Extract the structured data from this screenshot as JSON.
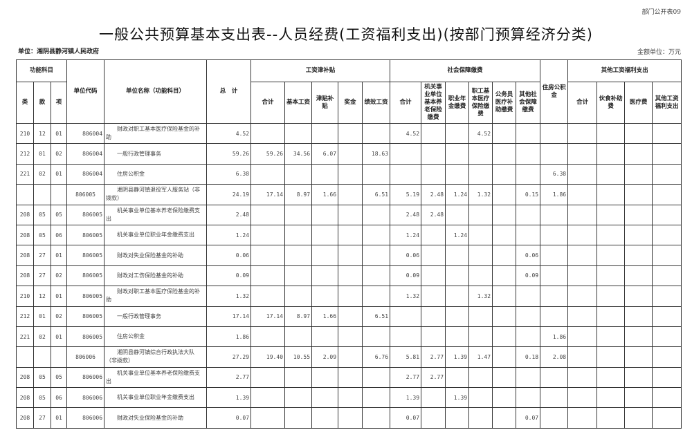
{
  "form_no": "部门公开表09",
  "title": "一般公共预算基本支出表--人员经费(工资福利支出)(按部门预算经济分类)",
  "unit_label": "单位：湘阴县静河镇人民政府",
  "money_unit": "金额单位：万元",
  "headers": {
    "func": "功能科目",
    "lei": "类",
    "kuan": "款",
    "xiang": "项",
    "code": "单位代码",
    "name": "单位名称（功能科目）",
    "total": "总　计",
    "wage_group": "工资津补贴",
    "wage": [
      "合计",
      "基本工资",
      "津贴补贴",
      "奖金",
      "绩效工资"
    ],
    "social_group": "社会保障缴费",
    "social": [
      "合计",
      "机关事业单位基本养老保险缴费",
      "职业年金缴费",
      "职工基本医疗保险缴费",
      "公务员医疗补助缴费",
      "其他社会保障缴费"
    ],
    "housing": "住房公积金",
    "other_group": "其他工资福利支出",
    "other": [
      "合计",
      "伙食补助费",
      "医疗费",
      "其他工资福利支出"
    ]
  },
  "rows": [
    [
      "210",
      "12",
      "01",
      "806004",
      "财政对职工基本医疗保险基金的补助",
      "4.52",
      "",
      "",
      "",
      "",
      "",
      "4.52",
      "",
      "",
      "4.52",
      "",
      "",
      "",
      "",
      "",
      "",
      ""
    ],
    [
      "212",
      "01",
      "02",
      "806004",
      "一般行政管理事务",
      "59.26",
      "59.26",
      "34.56",
      "6.07",
      "",
      "18.63",
      "",
      "",
      "",
      "",
      "",
      "",
      "",
      "",
      "",
      "",
      ""
    ],
    [
      "221",
      "02",
      "01",
      "806004",
      "住房公积金",
      "6.38",
      "",
      "",
      "",
      "",
      "",
      "",
      "",
      "",
      "",
      "",
      "",
      "6.38",
      "",
      "",
      "",
      ""
    ],
    [
      "",
      "",
      "",
      "806005",
      "湘阴县静河镇退役军人服务站（非拨款）",
      "24.19",
      "17.14",
      "8.97",
      "1.66",
      "",
      "6.51",
      "5.19",
      "2.48",
      "1.24",
      "1.32",
      "",
      "0.15",
      "1.86",
      "",
      "",
      "",
      ""
    ],
    [
      "208",
      "05",
      "05",
      "806005",
      "机关事业单位基本养老保险缴费支出",
      "2.48",
      "",
      "",
      "",
      "",
      "",
      "2.48",
      "2.48",
      "",
      "",
      "",
      "",
      "",
      "",
      "",
      "",
      ""
    ],
    [
      "208",
      "05",
      "06",
      "806005",
      "机关事业单位职业年金缴费支出",
      "1.24",
      "",
      "",
      "",
      "",
      "",
      "1.24",
      "",
      "1.24",
      "",
      "",
      "",
      "",
      "",
      "",
      "",
      ""
    ],
    [
      "208",
      "27",
      "01",
      "806005",
      "财政对失业保险基金的补助",
      "0.06",
      "",
      "",
      "",
      "",
      "",
      "0.06",
      "",
      "",
      "",
      "",
      "0.06",
      "",
      "",
      "",
      "",
      ""
    ],
    [
      "208",
      "27",
      "02",
      "806005",
      "财政对工伤保险基金的补助",
      "0.09",
      "",
      "",
      "",
      "",
      "",
      "0.09",
      "",
      "",
      "",
      "",
      "0.09",
      "",
      "",
      "",
      "",
      ""
    ],
    [
      "210",
      "12",
      "01",
      "806005",
      "财政对职工基本医疗保险基金的补助",
      "1.32",
      "",
      "",
      "",
      "",
      "",
      "1.32",
      "",
      "",
      "1.32",
      "",
      "",
      "",
      "",
      "",
      "",
      ""
    ],
    [
      "212",
      "01",
      "02",
      "806005",
      "一般行政管理事务",
      "17.14",
      "17.14",
      "8.97",
      "1.66",
      "",
      "6.51",
      "",
      "",
      "",
      "",
      "",
      "",
      "",
      "",
      "",
      "",
      ""
    ],
    [
      "221",
      "02",
      "01",
      "806005",
      "住房公积金",
      "1.86",
      "",
      "",
      "",
      "",
      "",
      "",
      "",
      "",
      "",
      "",
      "",
      "1.86",
      "",
      "",
      "",
      ""
    ],
    [
      "",
      "",
      "",
      "806006",
      "湘阴县静河镇综合行政执法大队（非拨款）",
      "27.29",
      "19.40",
      "10.55",
      "2.09",
      "",
      "6.76",
      "5.81",
      "2.77",
      "1.39",
      "1.47",
      "",
      "0.18",
      "2.08",
      "",
      "",
      "",
      ""
    ],
    [
      "208",
      "05",
      "05",
      "806006",
      "机关事业单位基本养老保险缴费支出",
      "2.77",
      "",
      "",
      "",
      "",
      "",
      "2.77",
      "2.77",
      "",
      "",
      "",
      "",
      "",
      "",
      "",
      "",
      ""
    ],
    [
      "208",
      "05",
      "06",
      "806006",
      "机关事业单位职业年金缴费支出",
      "1.39",
      "",
      "",
      "",
      "",
      "",
      "1.39",
      "",
      "1.39",
      "",
      "",
      "",
      "",
      "",
      "",
      "",
      ""
    ],
    [
      "208",
      "27",
      "01",
      "806006",
      "财政对失业保险基金的补助",
      "0.07",
      "",
      "",
      "",
      "",
      "",
      "0.07",
      "",
      "",
      "",
      "",
      "0.07",
      "",
      "",
      "",
      "",
      ""
    ]
  ]
}
